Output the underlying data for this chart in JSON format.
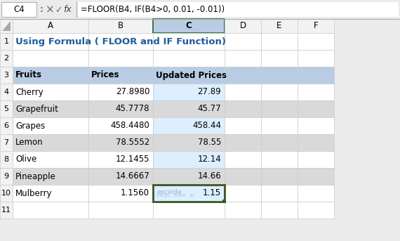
{
  "title": "Using Formula ( FLOOR and IF Function)",
  "formula_bar_cell": "C4",
  "formula_bar_formula": "=FLOOR(B4, IF(B4>0, 0.01, -0.01))",
  "col_letters": [
    "A",
    "B",
    "C",
    "D",
    "E",
    "F"
  ],
  "row_numbers": [
    "1",
    "2",
    "3",
    "4",
    "5",
    "6",
    "7",
    "8",
    "9",
    "10",
    "11"
  ],
  "headers": [
    "Fruits",
    "Prices",
    "Updated Prices"
  ],
  "fruits": [
    "Cherry",
    "Grapefruit",
    "Grapes",
    "Lemon",
    "Olive",
    "Pineapple",
    "Mulberry"
  ],
  "prices": [
    "27.8980",
    "45.7778",
    "458.4480",
    "78.5552",
    "12.1455",
    "14.6667",
    "1.1560"
  ],
  "updated": [
    "27.89",
    "45.77",
    "458.44",
    "78.55",
    "12.14",
    "14.66",
    "1.15"
  ],
  "title_color": "#1F5C99",
  "header_bg": "#B8CCE4",
  "alt_row_bg": "#D9D9D9",
  "toolbar_bg": "#EBEBEB",
  "col_header_bg": "#F2F2F2",
  "selected_col_header_bg": "#B8CCE4",
  "selected_cell_border": "#375623",
  "watermark_color": "#AAAACC"
}
